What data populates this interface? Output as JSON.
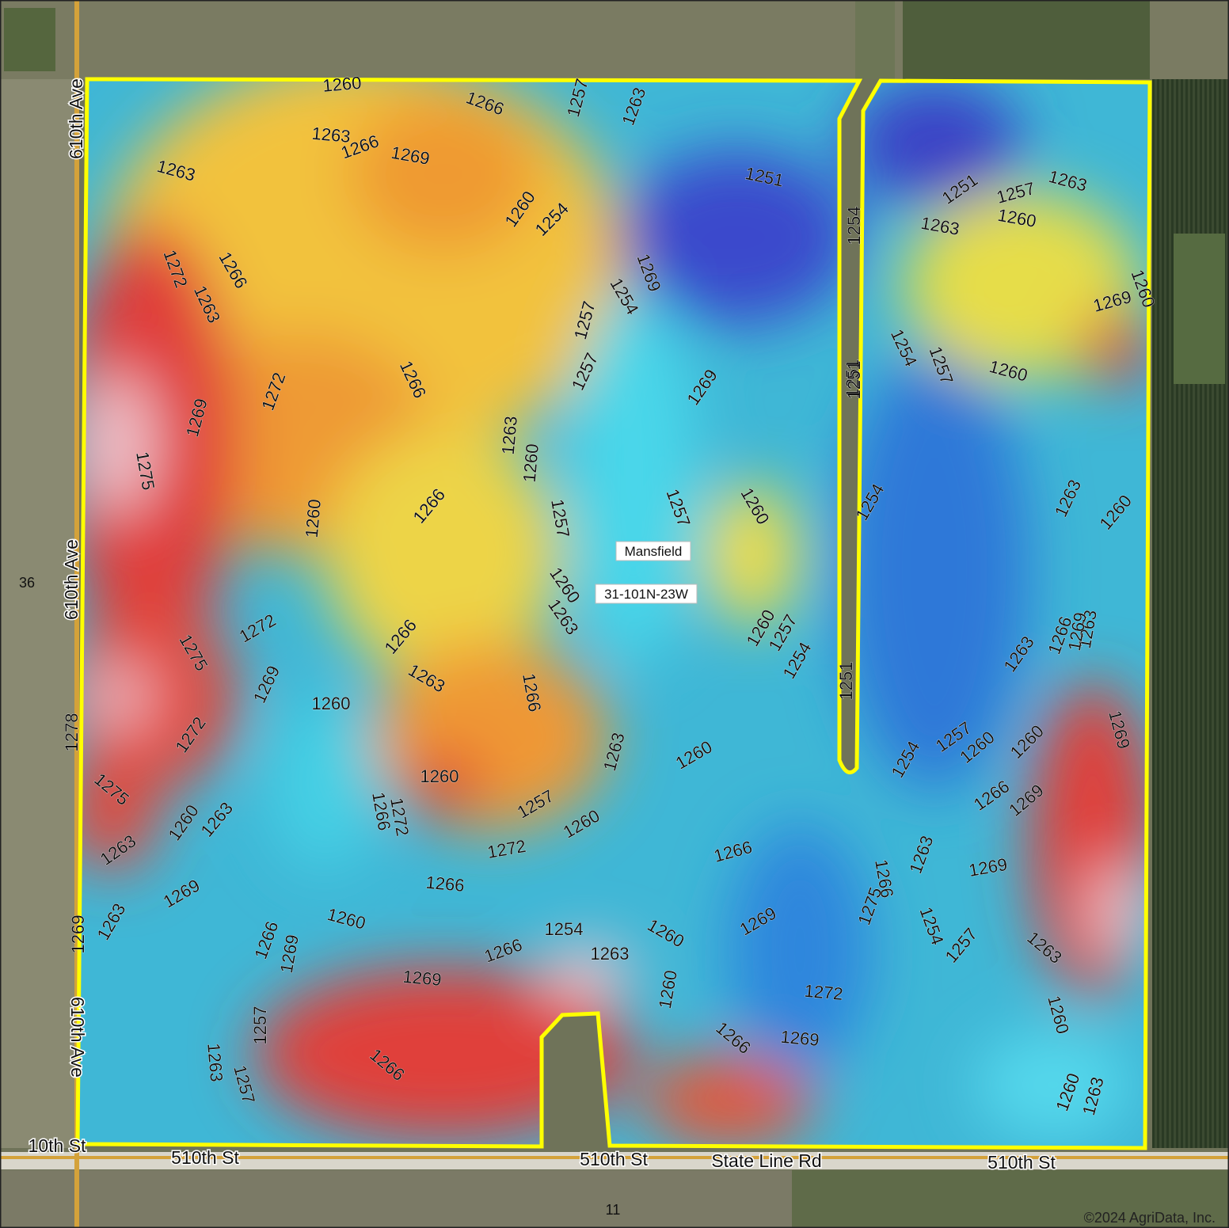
{
  "map": {
    "section_name": "Mansfield",
    "section_code": "31-101N-23W",
    "copyright": "©2024 AgriData, Inc.",
    "section_numbers": [
      "36",
      "11"
    ],
    "roads": {
      "west_upper": "610th Ave",
      "west_middle": "610th Ave",
      "west_lower": "610th Ave",
      "south_1": "10th St",
      "south_2": "510th St",
      "south_3": "510th St",
      "south_4": "State Line Rd",
      "south_5": "510th St"
    },
    "contour_interval": 3,
    "contour_labels": [
      "1260",
      "1266",
      "1263",
      "1257",
      "1263",
      "1266",
      "1269",
      "1263",
      "1251",
      "1254",
      "1251",
      "1257",
      "1263",
      "1260",
      "1254",
      "1263",
      "1260",
      "1272",
      "1266",
      "1269",
      "1254",
      "1251",
      "1260",
      "1269",
      "1263",
      "1272",
      "1266",
      "1257",
      "1269",
      "1254",
      "1254",
      "1257",
      "1251",
      "1260",
      "1275",
      "1263",
      "1260",
      "1266",
      "1269",
      "1257",
      "1260",
      "1257",
      "1260",
      "1257",
      "1260",
      "1263",
      "1275",
      "1272",
      "1260",
      "1269",
      "1263",
      "1266",
      "1257",
      "1251",
      "1254",
      "1263",
      "1260",
      "1272",
      "1260",
      "1266",
      "1263",
      "1278",
      "1269",
      "1263",
      "1260",
      "1260",
      "1254",
      "1257",
      "1260",
      "1263",
      "1266",
      "1269",
      "1275",
      "1263",
      "1266",
      "1269",
      "1260",
      "1266",
      "1272",
      "1263",
      "1263",
      "1260",
      "1257",
      "1260",
      "1272",
      "1269",
      "1266",
      "1269",
      "1263",
      "1266",
      "1269",
      "1275",
      "1254",
      "1257",
      "1266",
      "1260",
      "1254",
      "1263",
      "1266",
      "1269",
      "1260",
      "1266",
      "1269",
      "1269",
      "1263",
      "1266",
      "1272",
      "1260",
      "1260",
      "1269",
      "1257",
      "1263",
      "1257",
      "1266",
      "1260",
      "1263"
    ],
    "colors": {
      "boundary": "#ffff00",
      "low_elevation": "#2c3fd0",
      "mid_low": "#22c7e8",
      "mid": "#eee84a",
      "mid_high": "#ee8a2e",
      "high_elevation": "#e03a3a",
      "peak": "#efc9d2"
    }
  }
}
